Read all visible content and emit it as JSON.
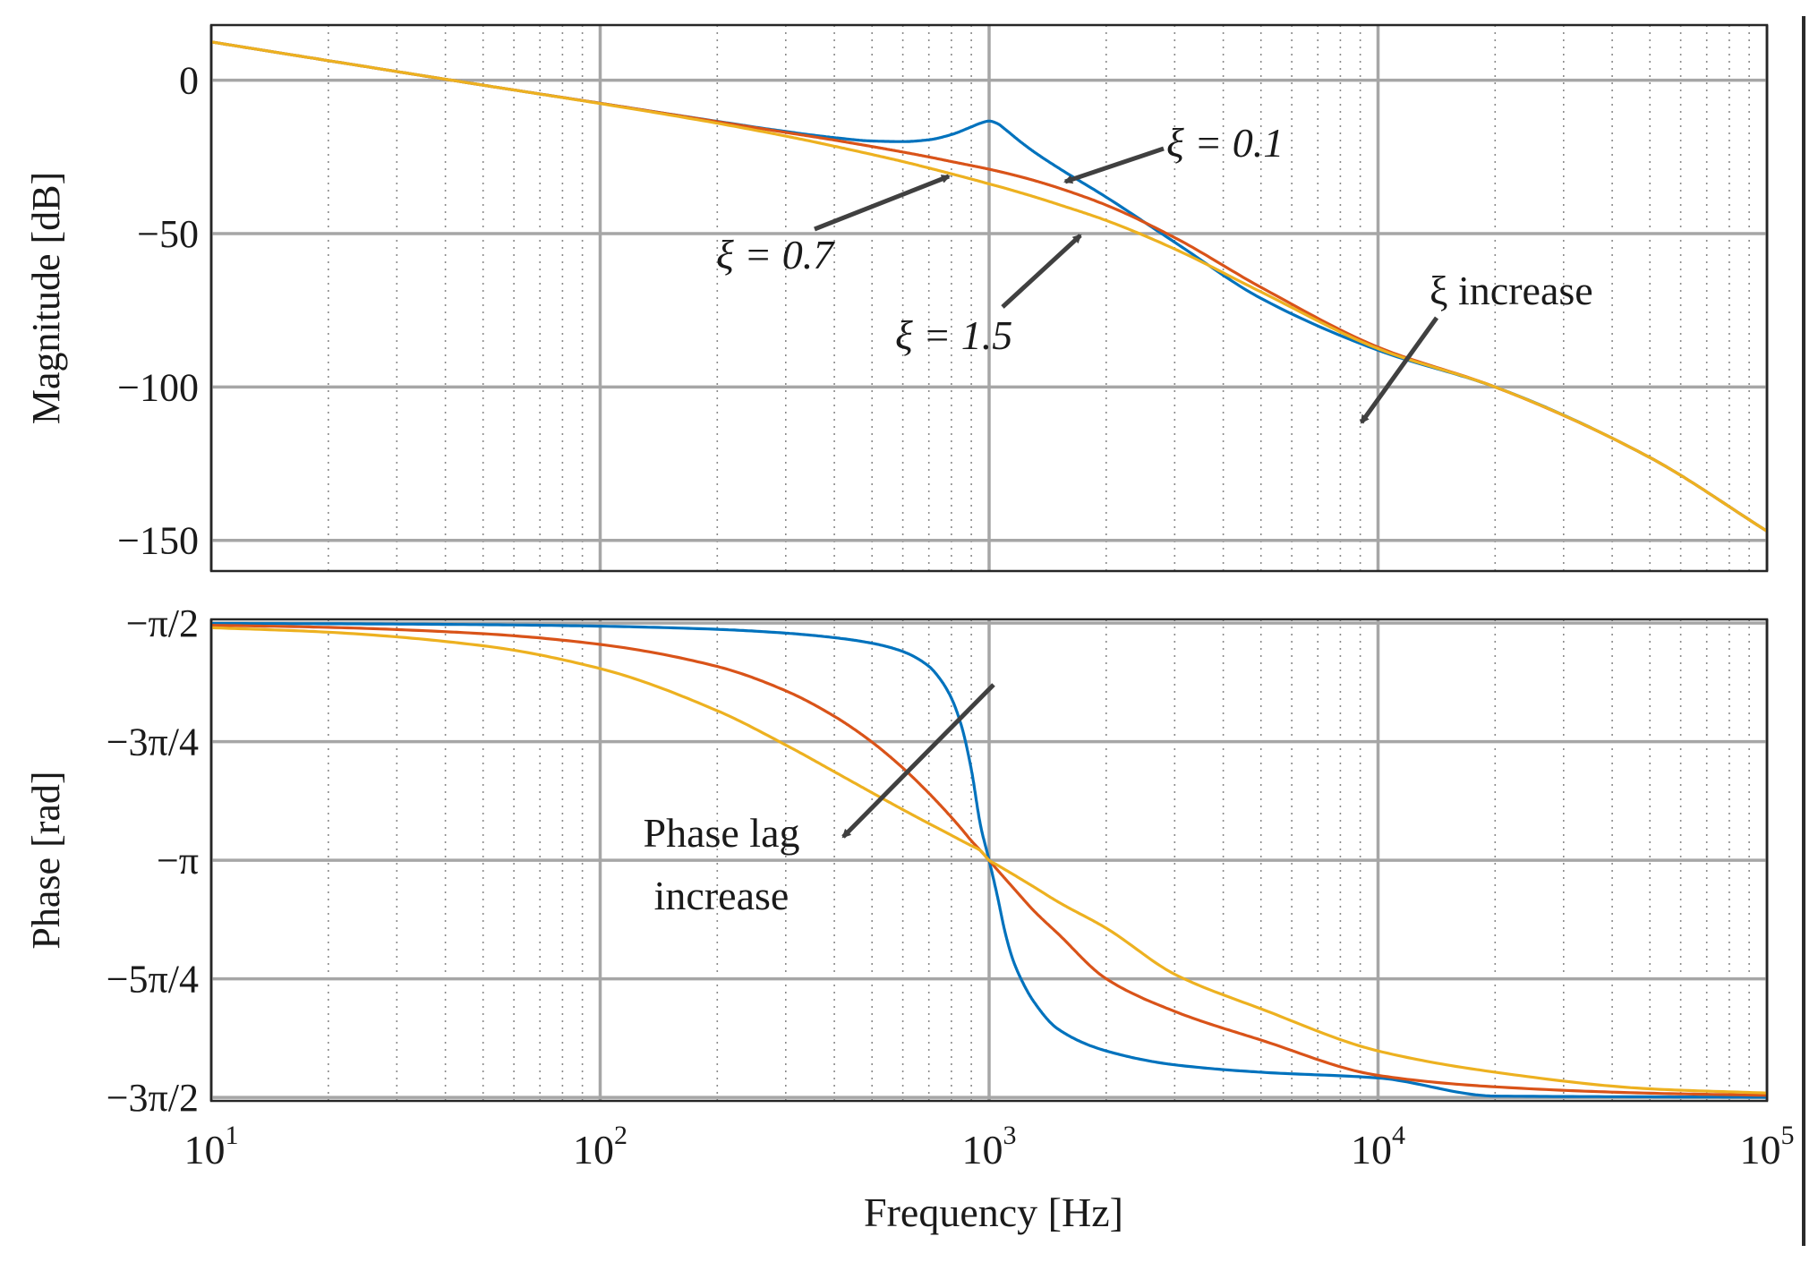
{
  "chart_data": [
    {
      "type": "line",
      "panel": "magnitude",
      "xlabel": "",
      "ylabel": "Magnitude [dB]",
      "x_scale": "log",
      "xlim": [
        10,
        100000
      ],
      "ylim": [
        -160,
        18
      ],
      "x_ticks": [
        10,
        100,
        1000,
        10000,
        100000
      ],
      "y_ticks": [
        0,
        -50,
        -100,
        -150
      ],
      "y_tick_labels": [
        "0",
        "−50",
        "−100",
        "−150"
      ],
      "grid": true,
      "x": [
        10,
        20,
        50,
        100,
        200,
        300,
        400,
        500,
        600,
        700,
        800,
        900,
        950,
        1000,
        1050,
        1100,
        1200,
        1300,
        1500,
        2000,
        3000,
        5000,
        10000,
        20000,
        50000,
        100000
      ],
      "series": [
        {
          "name": "ξ = 0.1",
          "color": "#0072bd",
          "values": [
            12.5,
            6.4,
            -1.6,
            -7.5,
            -13.4,
            -16.7,
            -18.7,
            -19.8,
            -20.0,
            -19.4,
            -17.7,
            -15.2,
            -14.0,
            -13.3,
            -14.1,
            -16.0,
            -19.9,
            -23.2,
            -28.4,
            -38.1,
            -52.8,
            -71.1,
            -88.0,
            -100.0,
            -123.0,
            -147.0
          ]
        },
        {
          "name": "ξ = 0.7",
          "color": "#d95319",
          "values": [
            12.5,
            6.4,
            -1.6,
            -7.5,
            -13.5,
            -17.0,
            -19.5,
            -21.6,
            -23.4,
            -25.0,
            -26.5,
            -27.8,
            -28.4,
            -29.0,
            -29.6,
            -30.2,
            -31.4,
            -32.6,
            -35.0,
            -40.7,
            -51.3,
            -67.5,
            -87.0,
            -100.0,
            -123.0,
            -147.0
          ]
        },
        {
          "name": "ξ = 1.5",
          "color": "#edb120",
          "values": [
            12.5,
            6.4,
            -1.6,
            -7.6,
            -14.0,
            -18.2,
            -21.5,
            -24.2,
            -26.5,
            -28.6,
            -30.5,
            -32.2,
            -33.0,
            -33.8,
            -34.5,
            -35.2,
            -36.6,
            -37.9,
            -40.4,
            -45.7,
            -55.0,
            -69.0,
            -87.5,
            -100.0,
            -123.0,
            -147.0
          ]
        }
      ],
      "annotations": [
        {
          "text": "ξ = 0.1"
        },
        {
          "text": "ξ = 0.7"
        },
        {
          "text": "ξ = 1.5"
        },
        {
          "text": "ξ increase"
        }
      ]
    },
    {
      "type": "line",
      "panel": "phase",
      "xlabel": "Frequency [Hz]",
      "ylabel": "Phase [rad]",
      "x_scale": "log",
      "xlim": [
        10,
        100000
      ],
      "ylim": [
        -4.735,
        -1.546
      ],
      "x_ticks": [
        10,
        100,
        1000,
        10000,
        100000
      ],
      "x_tick_labels": [
        {
          "base": "10",
          "exp": "1"
        },
        {
          "base": "10",
          "exp": "2"
        },
        {
          "base": "10",
          "exp": "3"
        },
        {
          "base": "10",
          "exp": "4"
        },
        {
          "base": "10",
          "exp": "5"
        }
      ],
      "y_ticks": [
        -1.5708,
        -2.3562,
        -3.1416,
        -3.927,
        -4.7124
      ],
      "y_tick_labels": [
        "−π/2",
        "−3π/4",
        "−π",
        "−5π/4",
        "−3π/2"
      ],
      "grid": true,
      "x": [
        10,
        20,
        50,
        100,
        200,
        300,
        400,
        500,
        600,
        700,
        750,
        800,
        850,
        900,
        950,
        1000,
        1050,
        1100,
        1150,
        1200,
        1300,
        1500,
        2000,
        3000,
        5000,
        10000,
        20000,
        50000,
        100000
      ],
      "series": [
        {
          "name": "ξ = 0.1",
          "color": "#0072bd",
          "values": [
            -1.573,
            -1.575,
            -1.581,
            -1.591,
            -1.612,
            -1.637,
            -1.667,
            -1.704,
            -1.759,
            -1.857,
            -1.945,
            -2.068,
            -2.256,
            -2.54,
            -2.907,
            -3.142,
            -3.378,
            -3.622,
            -3.796,
            -3.912,
            -4.074,
            -4.257,
            -4.404,
            -4.496,
            -4.545,
            -4.583,
            -4.703,
            -4.708,
            -4.711
          ]
        },
        {
          "name": "ξ = 0.7",
          "color": "#d95319",
          "values": [
            -1.585,
            -1.599,
            -1.641,
            -1.712,
            -1.858,
            -2.019,
            -2.188,
            -2.359,
            -2.53,
            -2.697,
            -2.778,
            -2.857,
            -2.935,
            -3.012,
            -3.077,
            -3.142,
            -3.205,
            -3.264,
            -3.32,
            -3.374,
            -3.473,
            -3.625,
            -3.926,
            -4.142,
            -4.332,
            -4.566,
            -4.642,
            -4.684,
            -4.698
          ]
        },
        {
          "name": "ξ = 1.5",
          "color": "#edb120",
          "values": [
            -1.601,
            -1.631,
            -1.721,
            -1.872,
            -2.151,
            -2.378,
            -2.555,
            -2.694,
            -2.806,
            -2.898,
            -2.938,
            -2.976,
            -3.012,
            -3.045,
            -3.077,
            -3.142,
            -3.173,
            -3.204,
            -3.233,
            -3.262,
            -3.316,
            -3.415,
            -3.591,
            -3.896,
            -4.125,
            -4.404,
            -4.545,
            -4.655,
            -4.683
          ]
        }
      ],
      "annotations": [
        {
          "text": "Phase lag"
        },
        {
          "text": "increase"
        }
      ]
    }
  ]
}
